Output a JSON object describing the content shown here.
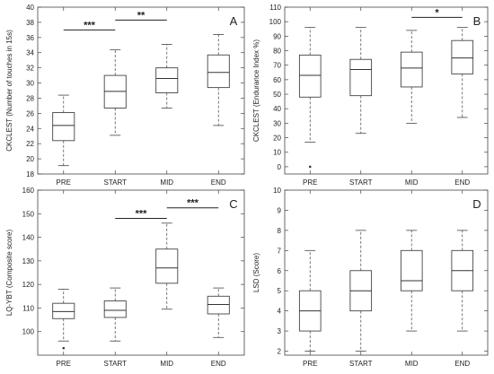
{
  "chart_data": [
    {
      "type": "box",
      "panel_label": "A",
      "ylabel": "CKCLEST (Number of touches in 15s)",
      "categories": [
        "PRE",
        "START",
        "MID",
        "END"
      ],
      "ylim": [
        18,
        40
      ],
      "yticks": [
        18,
        20,
        22,
        24,
        26,
        28,
        30,
        32,
        34,
        36,
        38,
        40
      ],
      "boxes": [
        {
          "min": 19.1,
          "q1": 22.4,
          "median": 24.4,
          "q3": 26.1,
          "max": 28.4
        },
        {
          "min": 23.1,
          "q1": 26.7,
          "median": 28.9,
          "q3": 31.0,
          "max": 34.4
        },
        {
          "min": 26.7,
          "q1": 28.7,
          "median": 30.6,
          "q3": 32.0,
          "max": 35.1
        },
        {
          "min": 24.4,
          "q1": 29.4,
          "median": 31.4,
          "q3": 33.7,
          "max": 36.4
        }
      ],
      "outliers": [],
      "significance": [
        {
          "from": "PRE",
          "to": "START",
          "y": 37.0,
          "label": "***"
        },
        {
          "from": "START",
          "to": "MID",
          "y": 38.3,
          "label": "**"
        }
      ]
    },
    {
      "type": "box",
      "panel_label": "B",
      "ylabel": "CKCLEST (Endurance Index %)",
      "categories": [
        "PRE",
        "START",
        "MID",
        "END"
      ],
      "ylim": [
        -5,
        110
      ],
      "yticks": [
        0,
        10,
        20,
        30,
        40,
        50,
        60,
        70,
        80,
        90,
        100,
        110
      ],
      "boxes": [
        {
          "min": 17,
          "q1": 48,
          "median": 63,
          "q3": 77,
          "max": 96
        },
        {
          "min": 23,
          "q1": 49,
          "median": 67,
          "q3": 74,
          "max": 96
        },
        {
          "min": 30,
          "q1": 55,
          "median": 68,
          "q3": 79,
          "max": 94
        },
        {
          "min": 34,
          "q1": 64,
          "median": 75,
          "q3": 87,
          "max": 96
        }
      ],
      "outliers": [
        {
          "category": "PRE",
          "value": 0
        }
      ],
      "significance": [
        {
          "from": "MID",
          "to": "END",
          "y": 103,
          "label": "*"
        }
      ]
    },
    {
      "type": "box",
      "panel_label": "C",
      "ylabel": "LQ-YBT (Composite score)",
      "categories": [
        "PRE",
        "START",
        "MID",
        "END"
      ],
      "ylim": [
        90,
        160
      ],
      "yticks": [
        100,
        110,
        120,
        130,
        140,
        150,
        160
      ],
      "boxes": [
        {
          "min": 96,
          "q1": 105.5,
          "median": 108.5,
          "q3": 112,
          "max": 118
        },
        {
          "min": 96,
          "q1": 106,
          "median": 109,
          "q3": 113,
          "max": 118.5
        },
        {
          "min": 109.5,
          "q1": 120.5,
          "median": 127,
          "q3": 135,
          "max": 146
        },
        {
          "min": 97.5,
          "q1": 107.5,
          "median": 111.5,
          "q3": 115,
          "max": 118.5
        }
      ],
      "outliers": [
        {
          "category": "PRE",
          "value": 93
        }
      ],
      "significance": [
        {
          "from": "START",
          "to": "MID",
          "y": 148,
          "label": "***"
        },
        {
          "from": "MID",
          "to": "END",
          "y": 152.5,
          "label": "***"
        }
      ]
    },
    {
      "type": "box",
      "panel_label": "D",
      "ylabel": "LSD (Score)",
      "categories": [
        "PRE",
        "START",
        "MID",
        "END"
      ],
      "ylim": [
        1.8,
        10
      ],
      "yticks": [
        2,
        3,
        4,
        5,
        6,
        7,
        8,
        9,
        10
      ],
      "boxes": [
        {
          "min": 2,
          "q1": 3,
          "median": 4,
          "q3": 5,
          "max": 7
        },
        {
          "min": 2,
          "q1": 4,
          "median": 5,
          "q3": 6,
          "max": 8
        },
        {
          "min": 3,
          "q1": 5,
          "median": 5.5,
          "q3": 7,
          "max": 8
        },
        {
          "min": 3,
          "q1": 5,
          "median": 6,
          "q3": 7,
          "max": 8
        }
      ],
      "outliers": [],
      "significance": []
    }
  ]
}
